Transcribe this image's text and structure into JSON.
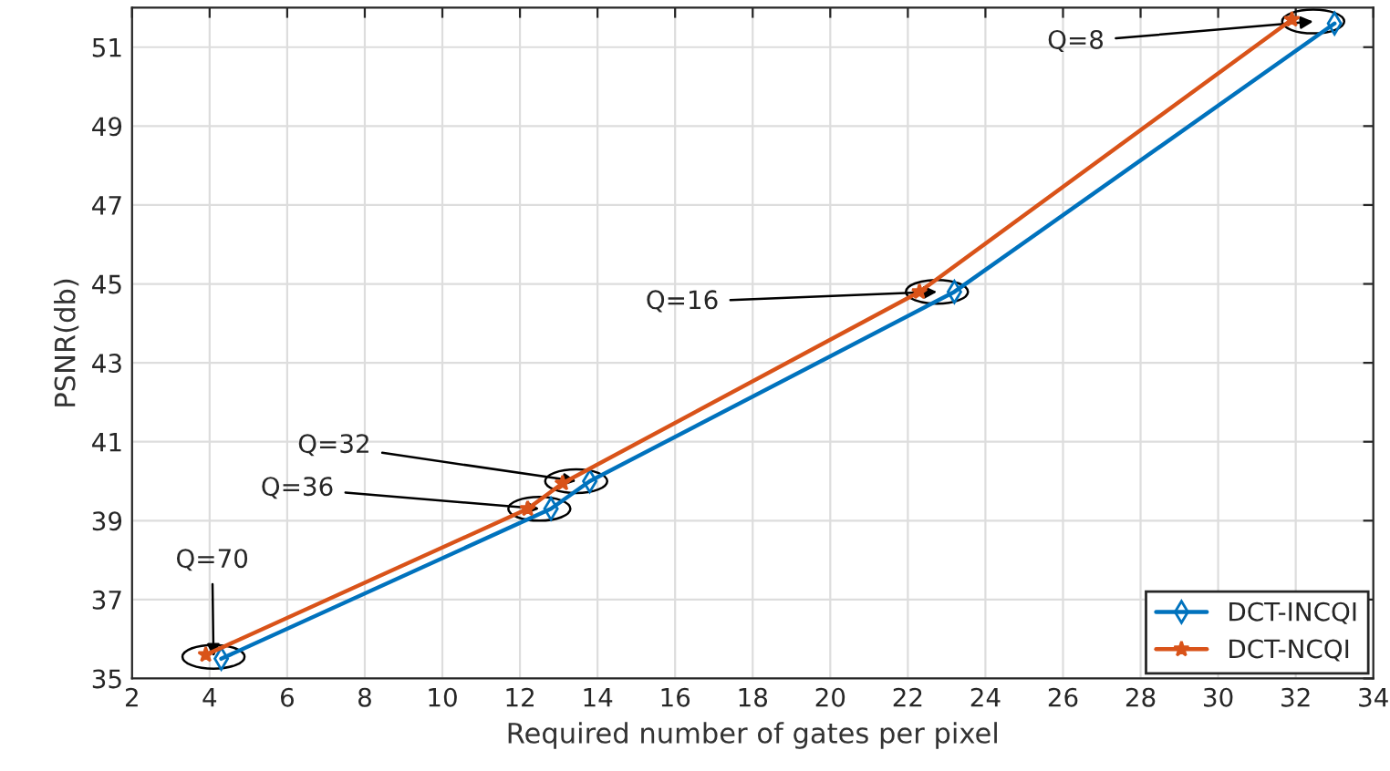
{
  "chart_data": {
    "type": "line",
    "xlabel": "Required number of gates per pixel",
    "ylabel": "PSNR(db)",
    "xlim": [
      2,
      34
    ],
    "xticks": [
      2,
      4,
      6,
      8,
      10,
      12,
      14,
      16,
      18,
      20,
      22,
      24,
      26,
      28,
      30,
      32,
      34
    ],
    "ylim": [
      35,
      52
    ],
    "yticks": [
      35,
      37,
      39,
      41,
      43,
      45,
      47,
      49,
      51
    ],
    "grid": true,
    "legend": "bottom right",
    "series": [
      {
        "name": "DCT-INCQI",
        "color": "#0072bd",
        "marker": "diamond",
        "x": [
          4.3,
          12.8,
          13.8,
          23.2,
          33.0
        ],
        "values": [
          35.5,
          39.3,
          40.0,
          44.8,
          51.6
        ]
      },
      {
        "name": "DCT-NCQI",
        "color": "#d95319",
        "marker": "star",
        "x": [
          3.9,
          12.2,
          13.1,
          22.3,
          31.9
        ],
        "values": [
          35.6,
          39.3,
          39.95,
          44.8,
          51.7
        ]
      }
    ],
    "annotations": [
      {
        "text": "Q=70",
        "x": 4.1,
        "y": 35.55
      },
      {
        "text": "Q=36",
        "x": 12.5,
        "y": 39.3
      },
      {
        "text": "Q=32",
        "x": 13.45,
        "y": 40.0
      },
      {
        "text": "Q=16",
        "x": 22.75,
        "y": 44.8
      },
      {
        "text": "Q=8",
        "x": 32.45,
        "y": 51.65
      }
    ]
  }
}
